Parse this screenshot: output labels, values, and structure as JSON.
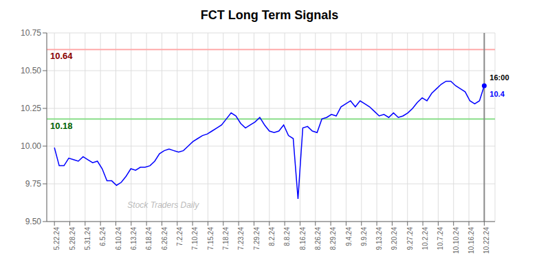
{
  "chart_data": {
    "type": "line",
    "title": "FCT Long Term Signals",
    "color": "blue",
    "x": [
      0,
      0.3111,
      0.6222,
      0.9333,
      1.2444,
      1.5556,
      1.8667,
      2.1778,
      2.4889,
      2.8,
      3.1111,
      3.4222,
      3.7333,
      4.0444,
      4.3556,
      4.6667,
      4.9778,
      5.2889,
      5.6,
      5.9111,
      6.2222,
      6.5333,
      6.8444,
      7.1556,
      7.4667,
      7.7778,
      8.0889,
      8.4,
      8.7111,
      9.0222,
      9.3333,
      9.6444,
      9.9556,
      10.2667,
      10.5778,
      10.8889,
      11.2,
      11.5111,
      11.8222,
      12.1333,
      12.4444,
      12.7556,
      13.0667,
      13.3778,
      13.6889,
      14,
      14.3111,
      14.6222,
      14.9333,
      15.2444,
      15.5556,
      15.8667,
      16.1778,
      16.4889,
      16.8,
      17.1111,
      17.4222,
      17.7333,
      18.0444,
      18.3556,
      18.6667,
      18.9778,
      19.2889,
      19.6,
      19.9111,
      20.2222,
      20.5333,
      20.8444,
      21.1556,
      21.4667,
      21.7778,
      22.0889,
      22.4,
      22.7111,
      23.0222,
      23.3333,
      23.6444,
      23.9556,
      24.2667,
      24.5778,
      24.8889,
      25.2,
      25.5111,
      25.8222,
      26.1333,
      26.4444,
      26.7556,
      27.0667,
      27.3778,
      27.6889,
      28
    ],
    "values": [
      9.99,
      9.87,
      9.87,
      9.92,
      9.91,
      9.9,
      9.93,
      9.91,
      9.89,
      9.9,
      9.85,
      9.77,
      9.77,
      9.74,
      9.76,
      9.8,
      9.85,
      9.84,
      9.86,
      9.86,
      9.87,
      9.9,
      9.95,
      9.97,
      9.98,
      9.97,
      9.96,
      9.97,
      10.0,
      10.03,
      10.05,
      10.07,
      10.08,
      10.1,
      10.12,
      10.14,
      10.18,
      10.22,
      10.2,
      10.15,
      10.12,
      10.14,
      10.16,
      10.19,
      10.14,
      10.1,
      10.09,
      10.1,
      10.14,
      10.07,
      10.05,
      9.65,
      10.12,
      10.13,
      10.1,
      10.09,
      10.18,
      10.19,
      10.21,
      10.2,
      10.26,
      10.28,
      10.3,
      10.26,
      10.3,
      10.28,
      10.26,
      10.23,
      10.2,
      10.21,
      10.19,
      10.22,
      10.19,
      10.2,
      10.22,
      10.25,
      10.29,
      10.32,
      10.3,
      10.35,
      10.38,
      10.41,
      10.43,
      10.43,
      10.4,
      10.38,
      10.36,
      10.3,
      10.28,
      10.3,
      10.4
    ],
    "xlim": [
      -0.5,
      28.7
    ],
    "xticks": [
      {
        "value": 0,
        "label": "5.22.24"
      },
      {
        "value": 1,
        "label": "5.28.24"
      },
      {
        "value": 2,
        "label": "5.31.24"
      },
      {
        "value": 3,
        "label": "6.5.24"
      },
      {
        "value": 4,
        "label": "6.10.24"
      },
      {
        "value": 5,
        "label": "6.13.24"
      },
      {
        "value": 6,
        "label": "6.18.24"
      },
      {
        "value": 7,
        "label": "6.26.24"
      },
      {
        "value": 8,
        "label": "7.2.24"
      },
      {
        "value": 9,
        "label": "7.10.24"
      },
      {
        "value": 10,
        "label": "7.15.24"
      },
      {
        "value": 11,
        "label": "7.18.24"
      },
      {
        "value": 12,
        "label": "7.23.24"
      },
      {
        "value": 13,
        "label": "7.29.24"
      },
      {
        "value": 14,
        "label": "8.2.24"
      },
      {
        "value": 15,
        "label": "8.8.24"
      },
      {
        "value": 16,
        "label": "8.16.24"
      },
      {
        "value": 17,
        "label": "8.26.24"
      },
      {
        "value": 18,
        "label": "8.29.24"
      },
      {
        "value": 19,
        "label": "9.4.24"
      },
      {
        "value": 20,
        "label": "9.9.24"
      },
      {
        "value": 21,
        "label": "9.13.24"
      },
      {
        "value": 22,
        "label": "9.20.24"
      },
      {
        "value": 23,
        "label": "9.27.24"
      },
      {
        "value": 24,
        "label": "10.2.24"
      },
      {
        "value": 25,
        "label": "10.7.24"
      },
      {
        "value": 26,
        "label": "10.10.24"
      },
      {
        "value": 27,
        "label": "10.16.24"
      },
      {
        "value": 28,
        "label": "10.22.24"
      }
    ],
    "ylim": [
      9.5,
      10.75
    ],
    "yticks": [
      {
        "value": 9.5,
        "label": "9.50"
      },
      9.75,
      {
        "value": 10.0,
        "label": "10.00"
      },
      10.25,
      {
        "value": 10.5,
        "label": "10.50"
      },
      10.75
    ],
    "grid": true,
    "hlines": [
      {
        "value": 10.64,
        "color": "#ffaaaa",
        "label": {
          "text": "10.64",
          "color": "darkred"
        }
      },
      {
        "value": 10.18,
        "color": "#88dd88",
        "label": {
          "text": "10.18",
          "color": "darkgreen"
        }
      }
    ],
    "annotations": [
      {
        "text": "16:00",
        "x": 28,
        "y": 10.4,
        "color": "black"
      },
      {
        "text": "10.4",
        "x": 28,
        "y": 10.4,
        "color": "blue"
      },
      {
        "text": "Stock Traders Daily",
        "color": "#bbbbbb"
      }
    ]
  }
}
